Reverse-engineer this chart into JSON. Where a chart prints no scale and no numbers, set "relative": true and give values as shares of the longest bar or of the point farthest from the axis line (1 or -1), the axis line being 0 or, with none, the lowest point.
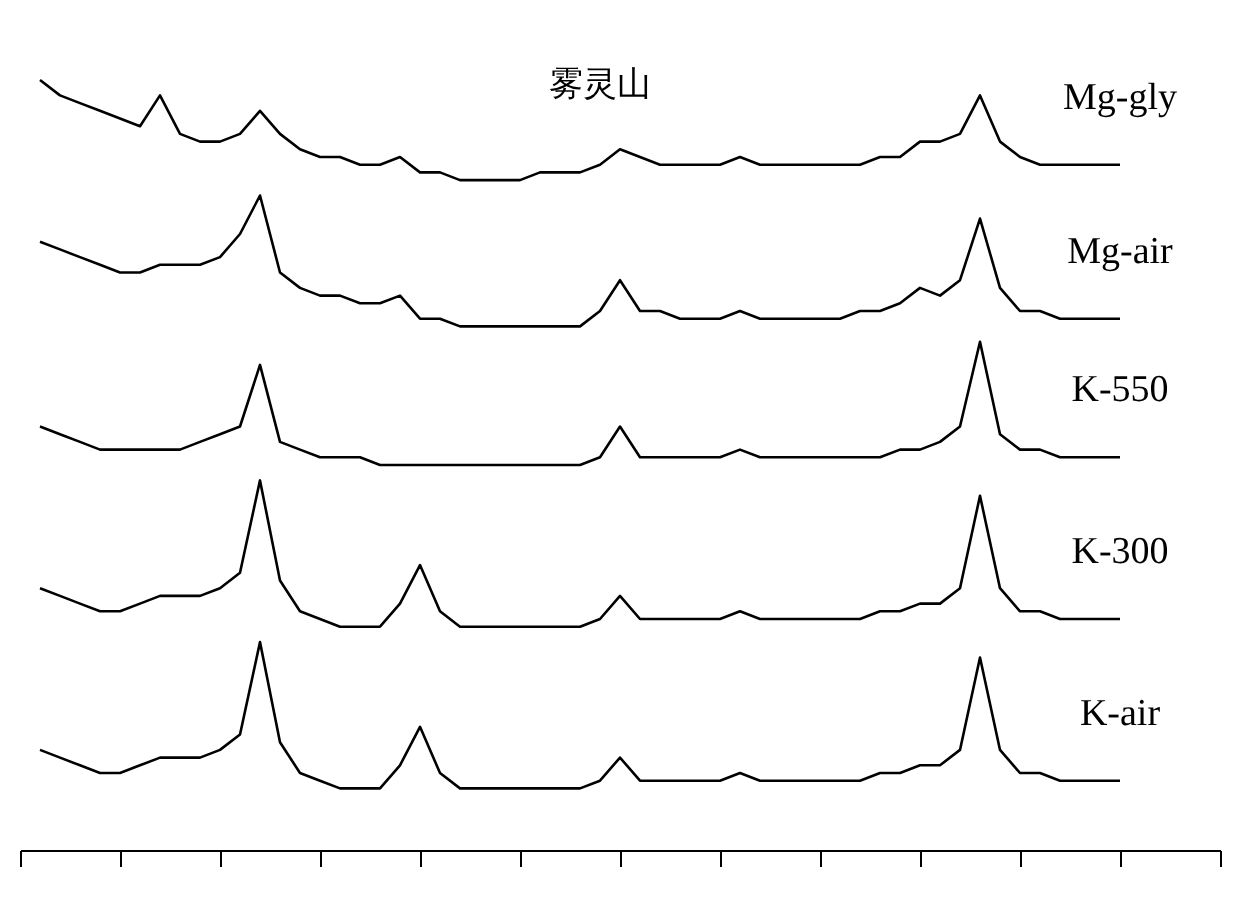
{
  "chart_data": {
    "type": "line",
    "title": "雾灵山",
    "relative": true,
    "categories": [
      null,
      null,
      null,
      null,
      null,
      null,
      null,
      null,
      null,
      null,
      null,
      null,
      null,
      null,
      null,
      null,
      null,
      null,
      null,
      null,
      null,
      null,
      null,
      null,
      null,
      null,
      null,
      null,
      null,
      null,
      null,
      null,
      null,
      null,
      null,
      null,
      null,
      null,
      null,
      null,
      null,
      null,
      null,
      null,
      null,
      null,
      null,
      null,
      null,
      null,
      null,
      null,
      null,
      null,
      null,
      null,
      null,
      null,
      null,
      null,
      null
    ],
    "series": [
      {
        "name": "Mg-gly",
        "color": "#000000",
        "values": [
          null,
          1.0,
          0.98,
          0.97,
          0.96,
          0.95,
          0.94,
          0.98,
          0.93,
          0.92,
          0.92,
          0.93,
          0.96,
          0.93,
          0.91,
          0.9,
          0.9,
          0.89,
          0.89,
          0.9,
          0.88,
          0.88,
          0.87,
          0.87,
          0.87,
          0.87,
          0.88,
          0.88,
          0.88,
          0.89,
          0.91,
          0.9,
          0.89,
          0.89,
          0.89,
          0.89,
          0.9,
          0.89,
          0.89,
          0.89,
          0.89,
          0.89,
          0.89,
          0.9,
          0.9,
          0.92,
          0.92,
          0.93,
          0.98,
          0.92,
          0.9,
          0.89,
          0.89,
          0.89,
          0.89,
          0.89,
          null,
          null,
          null,
          null,
          null
        ]
      },
      {
        "name": "Mg-air",
        "color": "#000000",
        "values": [
          null,
          0.79,
          0.78,
          0.77,
          0.76,
          0.75,
          0.75,
          0.76,
          0.76,
          0.76,
          0.77,
          0.8,
          0.85,
          0.75,
          0.73,
          0.72,
          0.72,
          0.71,
          0.71,
          0.72,
          0.69,
          0.69,
          0.68,
          0.68,
          0.68,
          0.68,
          0.68,
          0.68,
          0.68,
          0.7,
          0.74,
          0.7,
          0.7,
          0.69,
          0.69,
          0.69,
          0.7,
          0.69,
          0.69,
          0.69,
          0.69,
          0.69,
          0.7,
          0.7,
          0.71,
          0.73,
          0.72,
          0.74,
          0.82,
          0.73,
          0.7,
          0.7,
          0.69,
          0.69,
          0.69,
          0.69,
          null,
          null,
          null,
          null,
          null
        ]
      },
      {
        "name": "K-550",
        "color": "#000000",
        "values": [
          null,
          0.55,
          0.54,
          0.53,
          0.52,
          0.52,
          0.52,
          0.52,
          0.52,
          0.53,
          0.54,
          0.55,
          0.63,
          0.53,
          0.52,
          0.51,
          0.51,
          0.51,
          0.5,
          0.5,
          0.5,
          0.5,
          0.5,
          0.5,
          0.5,
          0.5,
          0.5,
          0.5,
          0.5,
          0.51,
          0.55,
          0.51,
          0.51,
          0.51,
          0.51,
          0.51,
          0.52,
          0.51,
          0.51,
          0.51,
          0.51,
          0.51,
          0.51,
          0.51,
          0.52,
          0.52,
          0.53,
          0.55,
          0.66,
          0.54,
          0.52,
          0.52,
          0.51,
          0.51,
          0.51,
          0.51,
          null,
          null,
          null,
          null,
          null
        ]
      },
      {
        "name": "K-300",
        "color": "#000000",
        "values": [
          null,
          0.34,
          0.33,
          0.32,
          0.31,
          0.31,
          0.32,
          0.33,
          0.33,
          0.33,
          0.34,
          0.36,
          0.48,
          0.35,
          0.31,
          0.3,
          0.29,
          0.29,
          0.29,
          0.32,
          0.37,
          0.31,
          0.29,
          0.29,
          0.29,
          0.29,
          0.29,
          0.29,
          0.29,
          0.3,
          0.33,
          0.3,
          0.3,
          0.3,
          0.3,
          0.3,
          0.31,
          0.3,
          0.3,
          0.3,
          0.3,
          0.3,
          0.3,
          0.31,
          0.31,
          0.32,
          0.32,
          0.34,
          0.46,
          0.34,
          0.31,
          0.31,
          0.3,
          0.3,
          0.3,
          0.3,
          null,
          null,
          null,
          null,
          null
        ]
      },
      {
        "name": "K-air",
        "color": "#000000",
        "values": [
          null,
          0.13,
          0.12,
          0.11,
          0.1,
          0.1,
          0.11,
          0.12,
          0.12,
          0.12,
          0.13,
          0.15,
          0.27,
          0.14,
          0.1,
          0.09,
          0.08,
          0.08,
          0.08,
          0.11,
          0.16,
          0.1,
          0.08,
          0.08,
          0.08,
          0.08,
          0.08,
          0.08,
          0.08,
          0.09,
          0.12,
          0.09,
          0.09,
          0.09,
          0.09,
          0.09,
          0.1,
          0.09,
          0.09,
          0.09,
          0.09,
          0.09,
          0.09,
          0.1,
          0.1,
          0.11,
          0.11,
          0.13,
          0.25,
          0.13,
          0.1,
          0.1,
          0.09,
          0.09,
          0.09,
          0.09,
          null,
          null,
          null,
          null,
          null
        ]
      }
    ]
  }
}
